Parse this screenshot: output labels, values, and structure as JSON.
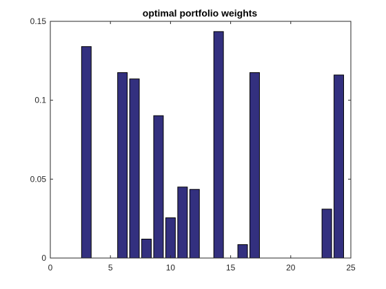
{
  "chart_data": {
    "type": "bar",
    "title": "optimal portfolio weights",
    "xlabel": "",
    "ylabel": "",
    "xlim": [
      0,
      25
    ],
    "ylim": [
      0,
      0.15
    ],
    "xticks": [
      0,
      5,
      10,
      15,
      20,
      25
    ],
    "xtick_labels": [
      "0",
      "5",
      "10",
      "15",
      "20",
      "25"
    ],
    "yticks": [
      0,
      0.05,
      0.1,
      0.15
    ],
    "ytick_labels": [
      "0",
      "0.05",
      "0.1",
      "0.15"
    ],
    "grid": false,
    "bar_color": "#33307F",
    "edge_color": "#000000",
    "x": [
      1,
      2,
      3,
      4,
      5,
      6,
      7,
      8,
      9,
      10,
      11,
      12,
      13,
      14,
      15,
      16,
      17,
      18,
      19,
      20,
      21,
      22,
      23,
      24
    ],
    "values": [
      0,
      0,
      0.134,
      0,
      0,
      0.1175,
      0.1135,
      0.012,
      0.0902,
      0.0255,
      0.045,
      0.0435,
      0,
      0.1435,
      0,
      0.0085,
      0.1175,
      0,
      0,
      0,
      0,
      0,
      0.031,
      0.116
    ]
  }
}
